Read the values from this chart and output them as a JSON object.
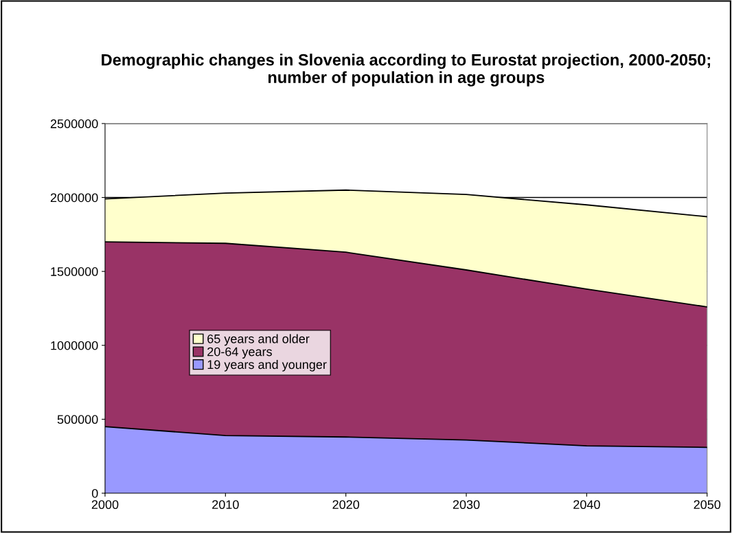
{
  "chart_data": {
    "type": "area",
    "stacked": true,
    "title": "Demographic changes in Slovenia according to Eurostat projection, 2000-2050; number of population in age groups",
    "x": [
      2000,
      2010,
      2020,
      2030,
      2040,
      2050
    ],
    "series": [
      {
        "name": "19 years and younger",
        "color": "#9999ff",
        "values": [
          450000,
          390000,
          380000,
          360000,
          320000,
          310000
        ]
      },
      {
        "name": "20-64 years",
        "color": "#993366",
        "values": [
          1250000,
          1300000,
          1250000,
          1150000,
          1060000,
          950000
        ]
      },
      {
        "name": "65 years and older",
        "color": "#ffffcc",
        "values": [
          290000,
          340000,
          420000,
          510000,
          570000,
          610000
        ]
      }
    ],
    "xlim": [
      2000,
      2050
    ],
    "xticks": [
      2000,
      2010,
      2020,
      2030,
      2040,
      2050
    ],
    "ylim": [
      0,
      2500000
    ],
    "yticks": [
      0,
      500000,
      1000000,
      1500000,
      2000000,
      2500000
    ],
    "grid": "y",
    "legend": "center left"
  }
}
